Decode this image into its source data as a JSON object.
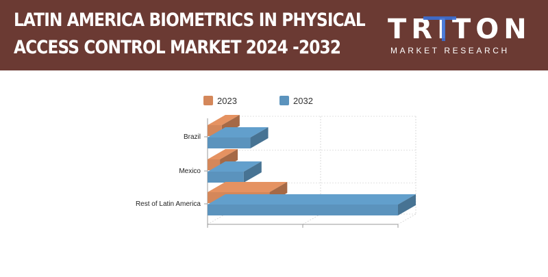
{
  "header": {
    "title_line1": "LATIN AMERICA BIOMETRICS IN PHYSICAL",
    "title_line2": "ACCESS CONTROL MARKET 2024 -2032",
    "background": "#6b3a33"
  },
  "logo": {
    "brand": "TRITON",
    "tagline": "MARKET RESEARCH",
    "accent": "#3b6fd4"
  },
  "chart_data": {
    "type": "bar",
    "orientation": "horizontal",
    "style": "3d",
    "categories": [
      "Brazil",
      "Mexico",
      "Rest of Latin America"
    ],
    "series": [
      {
        "name": "2023",
        "values": [
          1.5,
          1.3,
          6.5
        ],
        "color": "#d4875a"
      },
      {
        "name": "2032",
        "values": [
          4.5,
          3.8,
          20.0
        ],
        "color": "#5b93bd"
      }
    ],
    "xlim": [
      0,
      20
    ],
    "grid": true,
    "legend": "top"
  }
}
